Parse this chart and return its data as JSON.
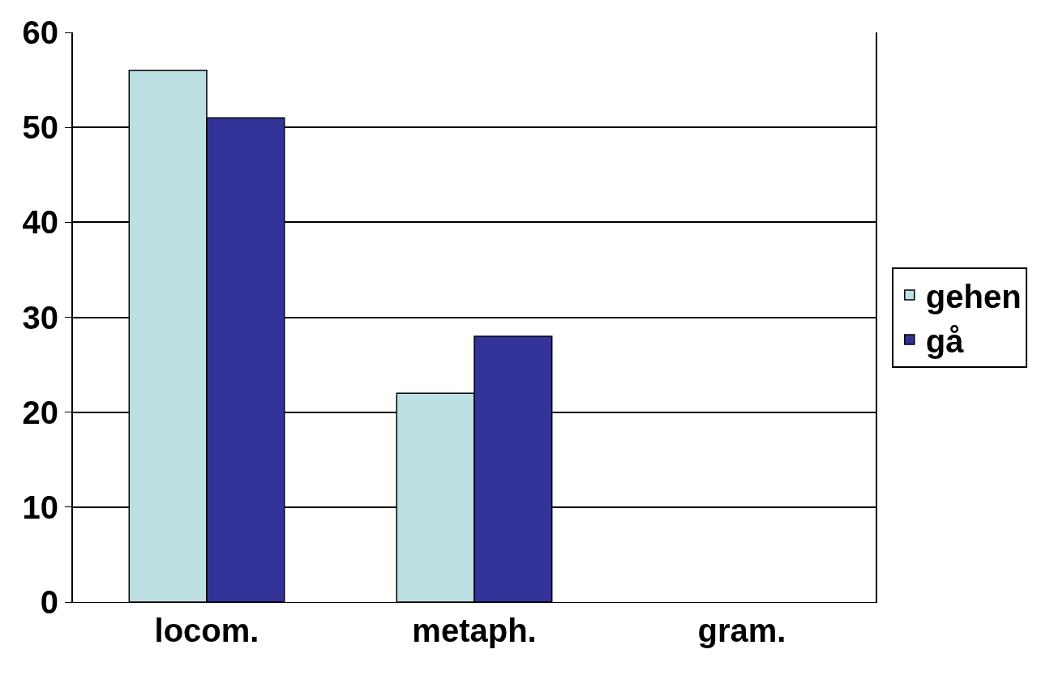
{
  "chart_data": {
    "type": "bar",
    "categories": [
      "locom.",
      "metaph.",
      "gram."
    ],
    "series": [
      {
        "name": "gehen",
        "color": "#bde0e3",
        "values": [
          56,
          22,
          0
        ]
      },
      {
        "name": "gå",
        "color": "#333399",
        "values": [
          51,
          28,
          0
        ]
      }
    ],
    "ylim": [
      0,
      60
    ],
    "yticks": [
      0,
      10,
      20,
      30,
      40,
      50,
      60
    ],
    "grid": "y",
    "legend": "right"
  }
}
